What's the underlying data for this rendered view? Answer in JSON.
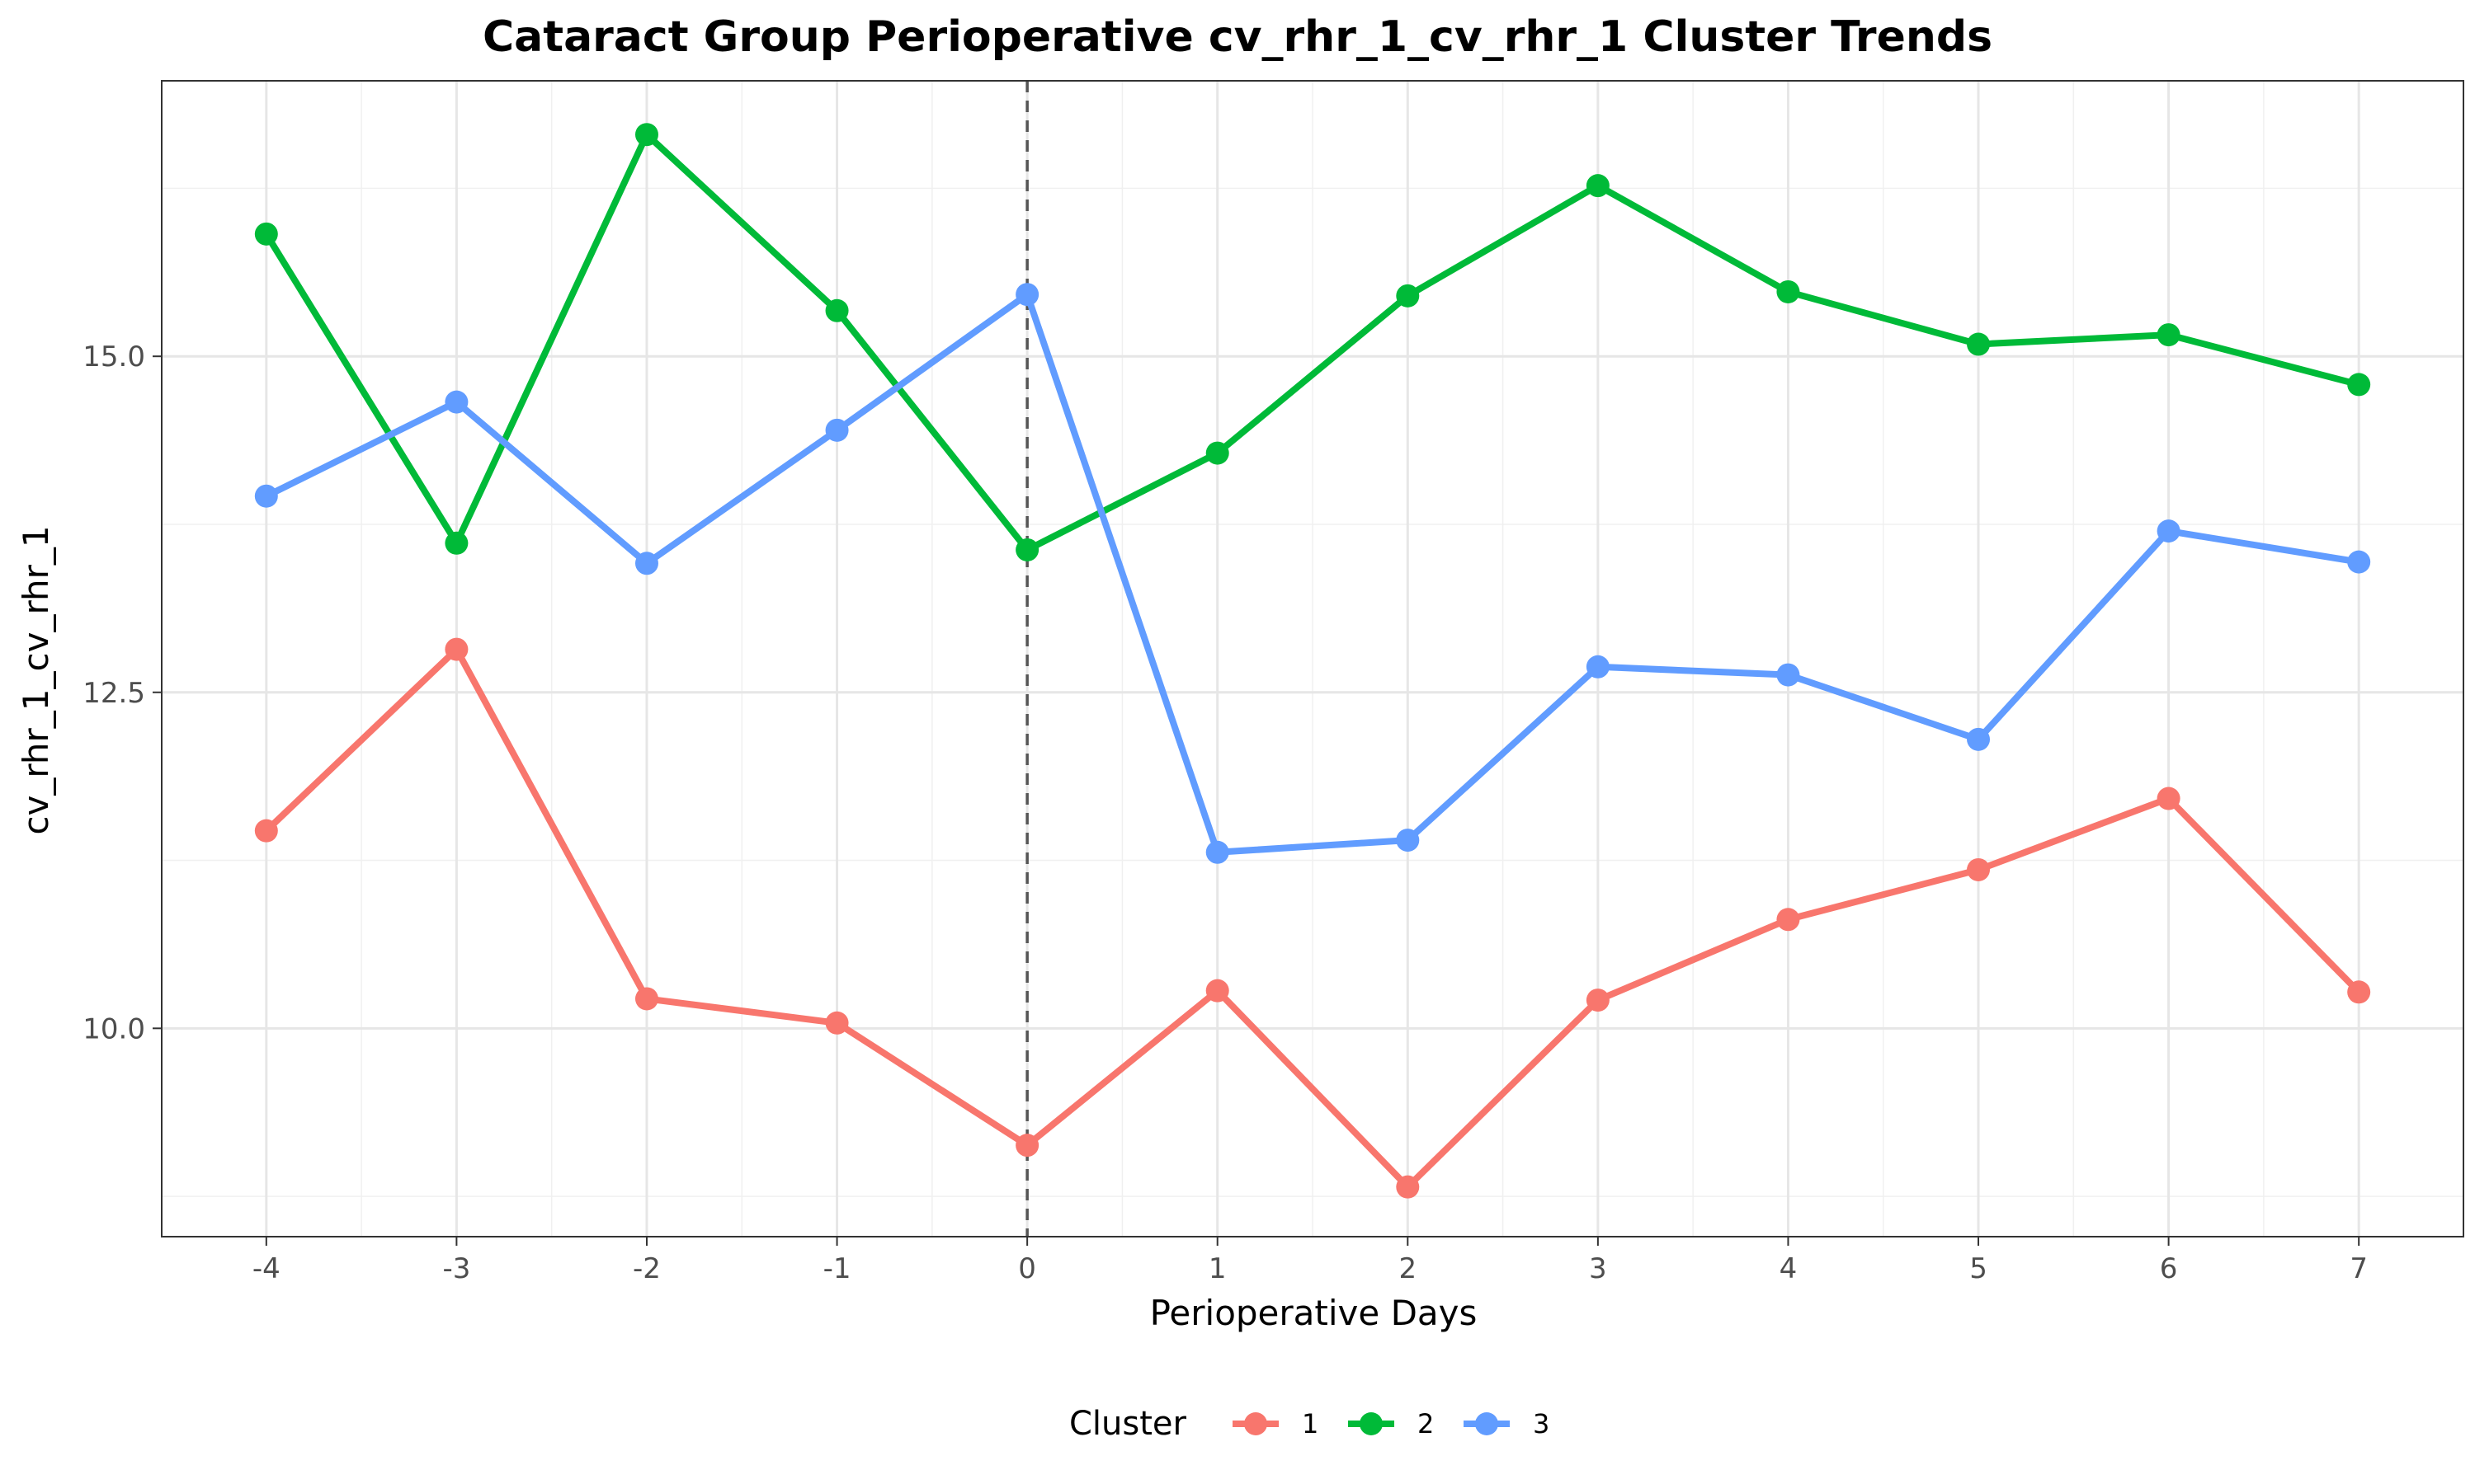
{
  "chart_data": {
    "type": "line",
    "title": "Cataract Group Perioperative cv_rhr_1_cv_rhr_1 Cluster Trends",
    "xlabel": "Perioperative Days",
    "ylabel": "cv_rhr_1_cv_rhr_1",
    "x": [
      -4,
      -3,
      -2,
      -1,
      0,
      1,
      2,
      3,
      4,
      5,
      6,
      7
    ],
    "x_tick_labels": [
      "-4",
      "-3",
      "-2",
      "-1",
      "0",
      "1",
      "2",
      "3",
      "4",
      "5",
      "6",
      "7"
    ],
    "y_ticks": [
      10.0,
      12.5,
      15.0
    ],
    "y_tick_labels": [
      "10.0",
      "12.5",
      "15.0"
    ],
    "xlim": [
      -4.55,
      7.55
    ],
    "ylim": [
      8.45,
      17.05
    ],
    "grid": true,
    "reference_line": {
      "x": 0,
      "style": "dashed",
      "color": "#555555"
    },
    "legend": {
      "title": "Cluster",
      "position": "bottom"
    },
    "series": [
      {
        "name": "1",
        "color": "#F8766D",
        "values": [
          11.47,
          12.82,
          10.22,
          10.04,
          9.13,
          10.28,
          8.82,
          10.21,
          10.81,
          11.18,
          11.71,
          10.27
        ]
      },
      {
        "name": "2",
        "color": "#00BA38",
        "values": [
          15.91,
          13.61,
          16.65,
          15.34,
          13.56,
          14.28,
          15.45,
          16.27,
          15.48,
          15.09,
          15.16,
          14.79
        ]
      },
      {
        "name": "3",
        "color": "#619CFF",
        "values": [
          13.96,
          14.66,
          13.46,
          14.45,
          15.46,
          11.31,
          11.4,
          12.69,
          12.63,
          12.15,
          13.7,
          13.47
        ]
      }
    ]
  }
}
